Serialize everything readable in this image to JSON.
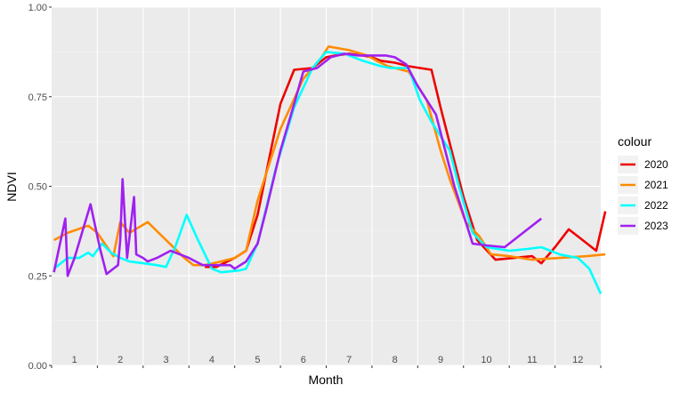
{
  "chart_data": {
    "type": "line",
    "xlabel": "Month",
    "ylabel": "NDVI",
    "xlim": [
      0.5,
      12.5
    ],
    "ylim": [
      0,
      1
    ],
    "y_ticks": [
      "0.00",
      "0.25",
      "0.50",
      "0.75",
      "1.00"
    ],
    "y_tick_values": [
      0,
      0.25,
      0.5,
      0.75,
      1.0
    ],
    "x_tick_labels": [
      "1",
      "2",
      "3",
      "4",
      "5",
      "6",
      "7",
      "8",
      "9",
      "10",
      "11",
      "12"
    ],
    "grid": true,
    "legend": {
      "title": "colour",
      "position": "right"
    },
    "series": [
      {
        "name": "2020",
        "color": "#ee0000",
        "points": [
          [
            3.85,
            0.275
          ],
          [
            4.1,
            0.275
          ],
          [
            4.5,
            0.3
          ],
          [
            4.75,
            0.32
          ],
          [
            5.0,
            0.42
          ],
          [
            5.5,
            0.73
          ],
          [
            5.8,
            0.825
          ],
          [
            6.2,
            0.83
          ],
          [
            6.5,
            0.86
          ],
          [
            6.7,
            0.865
          ],
          [
            7.0,
            0.87
          ],
          [
            7.3,
            0.865
          ],
          [
            7.5,
            0.86
          ],
          [
            7.7,
            0.85
          ],
          [
            8.0,
            0.845
          ],
          [
            8.3,
            0.835
          ],
          [
            8.8,
            0.825
          ],
          [
            9.0,
            0.72
          ],
          [
            9.5,
            0.47
          ],
          [
            9.8,
            0.35
          ],
          [
            10.2,
            0.295
          ],
          [
            10.6,
            0.3
          ],
          [
            11.0,
            0.305
          ],
          [
            11.2,
            0.285
          ],
          [
            11.5,
            0.33
          ],
          [
            11.8,
            0.38
          ],
          [
            12.0,
            0.36
          ],
          [
            12.4,
            0.32
          ],
          [
            12.6,
            0.43
          ]
        ]
      },
      {
        "name": "2021",
        "color": "#ff8c00",
        "points": [
          [
            0.55,
            0.35
          ],
          [
            0.85,
            0.37
          ],
          [
            1.3,
            0.39
          ],
          [
            1.5,
            0.37
          ],
          [
            1.85,
            0.305
          ],
          [
            2.0,
            0.4
          ],
          [
            2.2,
            0.37
          ],
          [
            2.6,
            0.4
          ],
          [
            2.8,
            0.375
          ],
          [
            3.4,
            0.3
          ],
          [
            3.6,
            0.28
          ],
          [
            3.85,
            0.28
          ],
          [
            4.2,
            0.29
          ],
          [
            4.5,
            0.3
          ],
          [
            4.75,
            0.32
          ],
          [
            5.0,
            0.46
          ],
          [
            5.5,
            0.66
          ],
          [
            6.0,
            0.8
          ],
          [
            6.4,
            0.86
          ],
          [
            6.55,
            0.89
          ],
          [
            7.0,
            0.88
          ],
          [
            7.4,
            0.865
          ],
          [
            7.6,
            0.85
          ],
          [
            7.85,
            0.835
          ],
          [
            8.3,
            0.82
          ],
          [
            8.7,
            0.74
          ],
          [
            9.0,
            0.6
          ],
          [
            9.2,
            0.52
          ],
          [
            9.55,
            0.4
          ],
          [
            9.85,
            0.36
          ],
          [
            10.1,
            0.31
          ],
          [
            10.5,
            0.305
          ],
          [
            11.0,
            0.295
          ],
          [
            11.6,
            0.3
          ],
          [
            12.2,
            0.305
          ],
          [
            12.6,
            0.31
          ]
        ]
      },
      {
        "name": "2022",
        "color": "#00ffff",
        "points": [
          [
            0.55,
            0.27
          ],
          [
            0.85,
            0.3
          ],
          [
            1.1,
            0.3
          ],
          [
            1.3,
            0.315
          ],
          [
            1.4,
            0.305
          ],
          [
            1.6,
            0.34
          ],
          [
            1.8,
            0.315
          ],
          [
            2.0,
            0.3
          ],
          [
            2.2,
            0.29
          ],
          [
            2.5,
            0.285
          ],
          [
            2.8,
            0.28
          ],
          [
            3.0,
            0.275
          ],
          [
            3.2,
            0.33
          ],
          [
            3.45,
            0.42
          ],
          [
            3.7,
            0.35
          ],
          [
            4.0,
            0.27
          ],
          [
            4.2,
            0.26
          ],
          [
            4.6,
            0.265
          ],
          [
            4.75,
            0.27
          ],
          [
            5.0,
            0.34
          ],
          [
            5.4,
            0.55
          ],
          [
            5.8,
            0.72
          ],
          [
            6.2,
            0.83
          ],
          [
            6.5,
            0.875
          ],
          [
            6.9,
            0.87
          ],
          [
            7.3,
            0.85
          ],
          [
            7.7,
            0.835
          ],
          [
            7.9,
            0.83
          ],
          [
            8.3,
            0.83
          ],
          [
            8.55,
            0.74
          ],
          [
            8.8,
            0.68
          ],
          [
            9.2,
            0.6
          ],
          [
            9.4,
            0.5
          ],
          [
            9.7,
            0.37
          ],
          [
            10.0,
            0.33
          ],
          [
            10.5,
            0.32
          ],
          [
            10.9,
            0.325
          ],
          [
            11.2,
            0.33
          ],
          [
            11.6,
            0.31
          ],
          [
            12.0,
            0.3
          ],
          [
            12.25,
            0.27
          ],
          [
            12.5,
            0.2
          ]
        ]
      },
      {
        "name": "2023",
        "color": "#a020f0",
        "points": [
          [
            0.55,
            0.26
          ],
          [
            0.8,
            0.41
          ],
          [
            0.85,
            0.25
          ],
          [
            1.0,
            0.3
          ],
          [
            1.35,
            0.45
          ],
          [
            1.55,
            0.33
          ],
          [
            1.7,
            0.255
          ],
          [
            1.95,
            0.28
          ],
          [
            2.0,
            0.35
          ],
          [
            2.05,
            0.52
          ],
          [
            2.15,
            0.3
          ],
          [
            2.3,
            0.47
          ],
          [
            2.35,
            0.31
          ],
          [
            2.5,
            0.3
          ],
          [
            2.6,
            0.29
          ],
          [
            2.8,
            0.3
          ],
          [
            3.1,
            0.32
          ],
          [
            3.5,
            0.3
          ],
          [
            3.8,
            0.28
          ],
          [
            4.0,
            0.28
          ],
          [
            4.2,
            0.28
          ],
          [
            4.4,
            0.28
          ],
          [
            4.5,
            0.27
          ],
          [
            4.75,
            0.29
          ],
          [
            5.0,
            0.34
          ],
          [
            5.2,
            0.44
          ],
          [
            5.5,
            0.6
          ],
          [
            5.8,
            0.73
          ],
          [
            6.0,
            0.82
          ],
          [
            6.3,
            0.83
          ],
          [
            6.6,
            0.86
          ],
          [
            6.9,
            0.87
          ],
          [
            7.2,
            0.865
          ],
          [
            7.5,
            0.865
          ],
          [
            7.8,
            0.865
          ],
          [
            8.0,
            0.86
          ],
          [
            8.25,
            0.84
          ],
          [
            8.5,
            0.78
          ],
          [
            8.9,
            0.7
          ],
          [
            9.1,
            0.6
          ],
          [
            9.3,
            0.5
          ],
          [
            9.5,
            0.42
          ],
          [
            9.7,
            0.34
          ],
          [
            10.0,
            0.335
          ],
          [
            10.4,
            0.33
          ],
          [
            10.8,
            0.37
          ],
          [
            11.2,
            0.41
          ]
        ]
      }
    ]
  }
}
